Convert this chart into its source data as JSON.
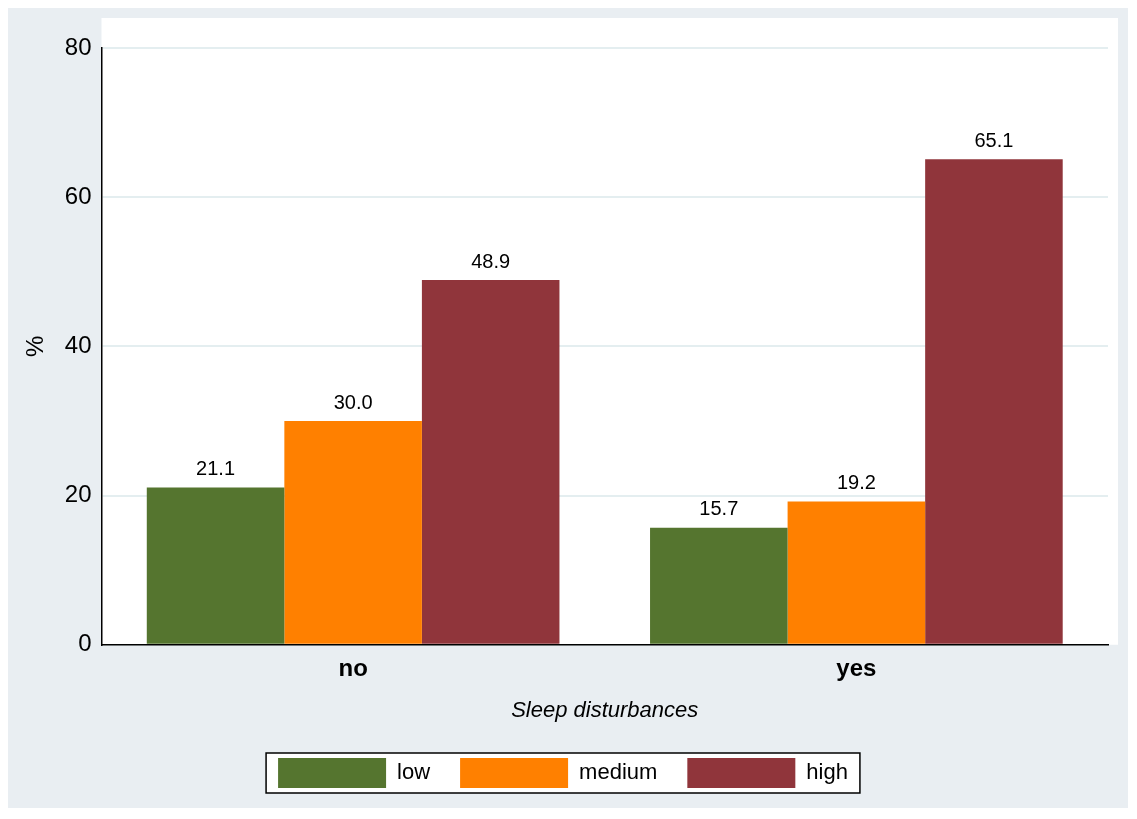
{
  "chart_data": {
    "type": "bar",
    "xlabel": "Sleep disturbances",
    "ylabel": "%",
    "categories": [
      "no",
      "yes"
    ],
    "series": [
      {
        "name": "low",
        "color": "#55752f",
        "values": [
          21.1,
          15.7
        ],
        "value_labels": [
          "21.1",
          "15.7"
        ]
      },
      {
        "name": "medium",
        "color": "#ff8000",
        "values": [
          30.0,
          19.2
        ],
        "value_labels": [
          "30.0",
          "19.2"
        ]
      },
      {
        "name": "high",
        "color": "#90353b",
        "values": [
          48.9,
          65.1
        ],
        "value_labels": [
          "48.9",
          "65.1"
        ]
      }
    ],
    "ylim": [
      0,
      80
    ],
    "yticks": [
      0,
      20,
      40,
      60,
      80
    ],
    "grid": "y",
    "legend": "bottom"
  }
}
